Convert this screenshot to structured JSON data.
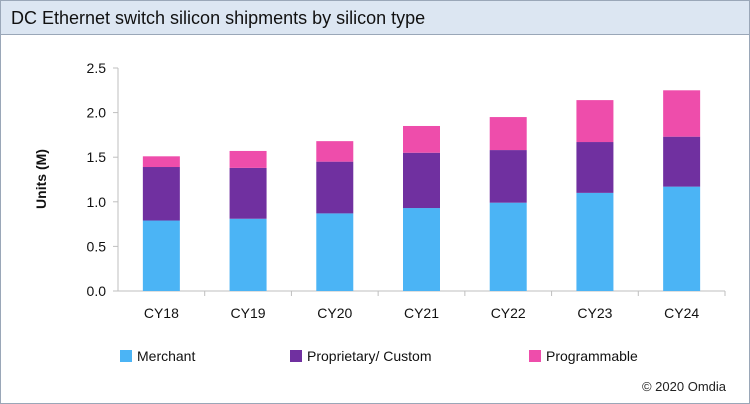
{
  "chart_data": {
    "type": "bar",
    "stacked": true,
    "title": "DC Ethernet switch silicon shipments by silicon type",
    "xlabel": "",
    "ylabel": "Units (M)",
    "ylim": [
      0,
      2.5
    ],
    "yticks": [
      "0.0",
      "0.5",
      "1.0",
      "1.5",
      "2.0",
      "2.5"
    ],
    "categories": [
      "CY18",
      "CY19",
      "CY20",
      "CY21",
      "CY22",
      "CY23",
      "CY24"
    ],
    "series": [
      {
        "name": "Merchant",
        "color": "#4bb4f5",
        "values": [
          0.79,
          0.81,
          0.87,
          0.93,
          0.99,
          1.1,
          1.17
        ]
      },
      {
        "name": "Proprietary/ Custom",
        "color": "#7030a0",
        "values": [
          0.6,
          0.57,
          0.58,
          0.62,
          0.59,
          0.57,
          0.56
        ]
      },
      {
        "name": "Programmable",
        "color": "#ee4dab",
        "values": [
          0.12,
          0.19,
          0.23,
          0.3,
          0.37,
          0.47,
          0.52
        ]
      }
    ],
    "grid": false,
    "legend": "bottom"
  },
  "footer": {
    "copyright": "© 2020 Omdia"
  }
}
